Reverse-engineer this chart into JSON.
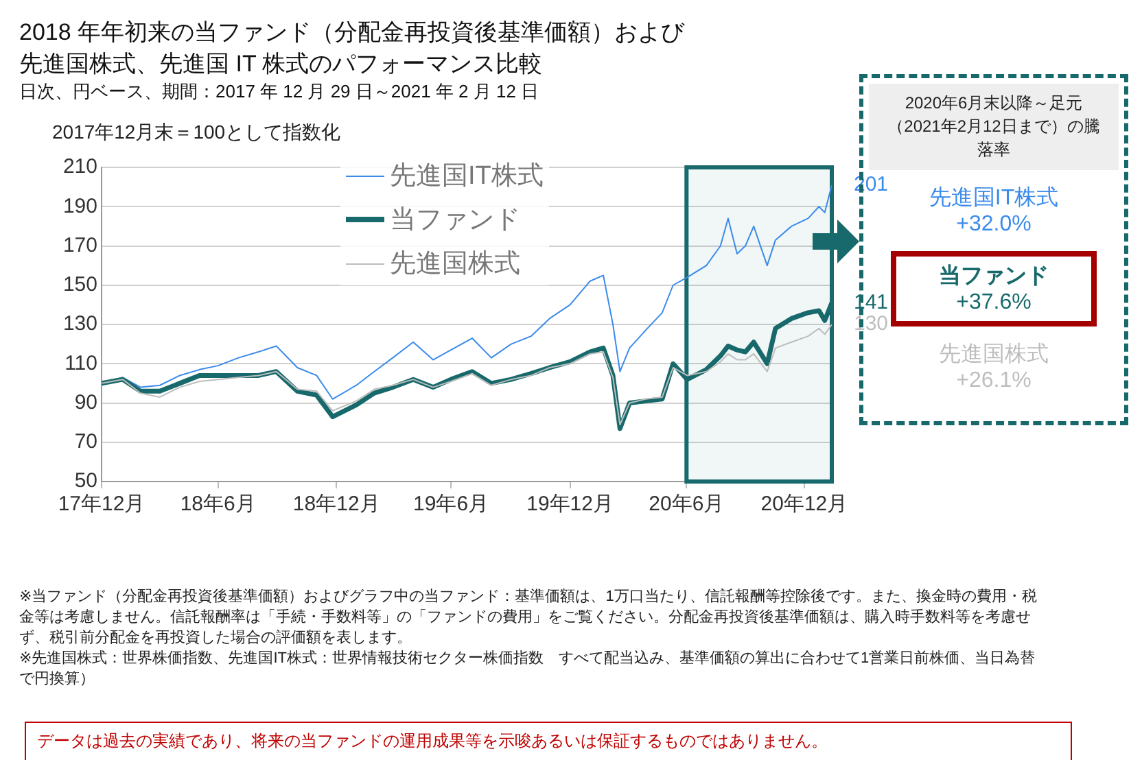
{
  "chart_data": [
    {
      "type": "line",
      "title": "2018 年年初来の当ファンド（分配金再投資後基準価額）および先進国株式、先進国 IT 株式のパフォーマンス比較",
      "subtitle": "日次、円ベース、期間：2017 年 12 月 29 日～2021 年 2 月 12 日",
      "ylabel": "2017年12月末＝100として指数化",
      "x": [
        "2017-12-29",
        "2018-01-31",
        "2018-02-28",
        "2018-03-30",
        "2018-04-30",
        "2018-05-31",
        "2018-06-29",
        "2018-07-31",
        "2018-08-31",
        "2018-09-28",
        "2018-10-31",
        "2018-11-30",
        "2018-12-25",
        "2019-01-31",
        "2019-02-28",
        "2019-03-29",
        "2019-04-30",
        "2019-05-31",
        "2019-06-28",
        "2019-07-31",
        "2019-08-30",
        "2019-09-30",
        "2019-10-31",
        "2019-11-29",
        "2019-12-31",
        "2020-01-31",
        "2020-02-21",
        "2020-03-07",
        "2020-03-18",
        "2020-04-02",
        "2020-04-27",
        "2020-05-23",
        "2020-06-09",
        "2020-07-01",
        "2020-07-31",
        "2020-08-22",
        "2020-09-03",
        "2020-09-17",
        "2020-09-30",
        "2020-10-13",
        "2020-11-03",
        "2020-11-16",
        "2020-12-11",
        "2021-01-06",
        "2021-01-23",
        "2021-02-01",
        "2021-02-12"
      ],
      "series": [
        {
          "name": "先進国IT株式",
          "color": "#3b8beb",
          "values": [
            100,
            103,
            98,
            99,
            104,
            107,
            109,
            113,
            116,
            119,
            108,
            104,
            92,
            99,
            106,
            113,
            121,
            112,
            117,
            123,
            113,
            120,
            124,
            133,
            140,
            152,
            155,
            130,
            106,
            118,
            127,
            136,
            150,
            154,
            160,
            170,
            184,
            166,
            170,
            180,
            160,
            173,
            180,
            184,
            190,
            187,
            201
          ],
          "value_labels": [
            null,
            null,
            null,
            null,
            null,
            null,
            null,
            null,
            null,
            null,
            null,
            null,
            null,
            null,
            null,
            null,
            null,
            null,
            null,
            null,
            null,
            null,
            null,
            null,
            null,
            null,
            null,
            null,
            null,
            null,
            null,
            null,
            null,
            null,
            null,
            null,
            null,
            null,
            null,
            null,
            null,
            null,
            null,
            null,
            null,
            null,
            "201"
          ]
        },
        {
          "name": "当ファンド",
          "color": "#17696b",
          "values": [
            100,
            102,
            96,
            96,
            100,
            104,
            104,
            104,
            104,
            106,
            96,
            94,
            83,
            89,
            95,
            98,
            102,
            98,
            102,
            106,
            100,
            102,
            105,
            108,
            111,
            116,
            118,
            104,
            77,
            90,
            91,
            92,
            110,
            102,
            107,
            114,
            119,
            117,
            116,
            121,
            110,
            128,
            133,
            136,
            137,
            132,
            141
          ],
          "value_labels": [
            null,
            null,
            null,
            null,
            null,
            null,
            null,
            null,
            null,
            null,
            null,
            null,
            null,
            null,
            null,
            null,
            null,
            null,
            null,
            null,
            null,
            null,
            null,
            null,
            null,
            null,
            null,
            null,
            null,
            null,
            null,
            null,
            null,
            null,
            null,
            null,
            null,
            null,
            null,
            null,
            null,
            null,
            null,
            null,
            null,
            null,
            "141"
          ]
        },
        {
          "name": "先進国株式",
          "color": "#bdbdbd",
          "values": [
            100,
            102,
            95,
            93,
            98,
            101,
            102,
            103,
            104,
            106,
            97,
            96,
            86,
            91,
            97,
            99,
            102,
            98,
            101,
            105,
            99,
            102,
            104,
            108,
            110,
            115,
            116,
            103,
            79,
            90,
            92,
            93,
            108,
            104,
            106,
            111,
            115,
            112,
            112,
            115,
            106,
            118,
            121,
            124,
            128,
            125,
            130
          ],
          "value_labels": [
            null,
            null,
            null,
            null,
            null,
            null,
            null,
            null,
            null,
            null,
            null,
            null,
            null,
            null,
            null,
            null,
            null,
            null,
            null,
            null,
            null,
            null,
            null,
            null,
            null,
            null,
            null,
            null,
            null,
            null,
            null,
            null,
            null,
            null,
            null,
            null,
            null,
            null,
            null,
            null,
            null,
            null,
            null,
            null,
            null,
            null,
            "130"
          ]
        }
      ],
      "xlim": [
        "2017-12-29",
        "2021-02-12"
      ],
      "xticks": [
        {
          "value": "2017-12-29",
          "label": "17年12月"
        },
        {
          "value": "2018-06-29",
          "label": "18年6月"
        },
        {
          "value": "2018-12-31",
          "label": "18年12月"
        },
        {
          "value": "2019-06-28",
          "label": "19年6月"
        },
        {
          "value": "2019-12-31",
          "label": "19年12月"
        },
        {
          "value": "2020-06-30",
          "label": "20年6月"
        },
        {
          "value": "2020-12-31",
          "label": "20年12月"
        }
      ],
      "ylim": [
        50,
        210
      ],
      "yticks": [
        50,
        70,
        90,
        110,
        130,
        150,
        170,
        190,
        210
      ],
      "bands": [
        {
          "axis": "x",
          "from": "2020-06-30",
          "to": "2021-02-12",
          "color": "#17696b"
        }
      ],
      "grid": "y",
      "legend": "top left",
      "marker": "none",
      "line_style": "solid",
      "annotations": [
        "※当ファンド（分配金再投資後基準価額）およびグラフ中の当ファンド：基準価額は、1万口当たり、信託報酬等控除後です。また、換金時の費用・税金等は考慮しません。信託報酬率は「手続・手数料等」の「ファンドの費用」をご覧ください。分配金再投資後基準価額は、購入時手数料等を考慮せず、税引前分配金を再投資した場合の評価額を表します。",
        "※先進国株式：世界株価指数、先進国IT株式：世界情報技術セクター株価指数　すべて配当込み、基準価額の算出に合わせて1営業日前株価、当日為替で円換算）",
        "データは過去の実績であり、将来の当ファンドの運用成果等を示唆あるいは保証するものではありません。"
      ]
    },
    {
      "type": "other",
      "title": "2020年6月末以降～足元（2021年2月12日まで）の騰落率",
      "categories": [
        "先進国IT株式",
        "当ファンド",
        "先進国株式"
      ],
      "value_labels": [
        "+32.0%",
        "+37.6%",
        "+26.1%"
      ],
      "colors": [
        "#3b8beb",
        "#17696b",
        "#bdbdbd"
      ]
    }
  ]
}
